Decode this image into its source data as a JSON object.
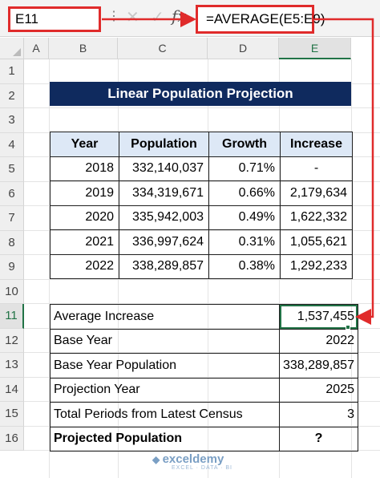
{
  "formula_bar": {
    "name_box": "E11",
    "separator": "⋮",
    "cancel_icon": "✕",
    "enter_icon": "✓",
    "fx_label": "fx",
    "formula": "=AVERAGE(E5:E9)"
  },
  "columns": [
    "A",
    "B",
    "C",
    "D",
    "E"
  ],
  "rows": [
    "1",
    "2",
    "3",
    "4",
    "5",
    "6",
    "7",
    "8",
    "9",
    "10",
    "11",
    "12",
    "13",
    "14",
    "15",
    "16"
  ],
  "title": "Linear Population Projection",
  "table": {
    "headers": [
      "Year",
      "Population",
      "Growth",
      "Increase"
    ],
    "rows": [
      [
        "2018",
        "332,140,037",
        "0.71%",
        "-"
      ],
      [
        "2019",
        "334,319,671",
        "0.66%",
        "2,179,634"
      ],
      [
        "2020",
        "335,942,003",
        "0.49%",
        "1,622,332"
      ],
      [
        "2021",
        "336,997,624",
        "0.31%",
        "1,055,621"
      ],
      [
        "2022",
        "338,289,857",
        "0.38%",
        "1,292,233"
      ]
    ]
  },
  "summary": [
    {
      "label": "Average Increase",
      "value": "1,537,455"
    },
    {
      "label": "Base Year",
      "value": "2022"
    },
    {
      "label": "Base Year Population",
      "value": "338,289,857"
    },
    {
      "label": "Projection Year",
      "value": "2025"
    },
    {
      "label": "Total Periods from Latest Census",
      "value": "3"
    },
    {
      "label": "Projected Population",
      "value": "?"
    }
  ],
  "watermark": {
    "brand": "exceldemy",
    "tagline": "EXCEL · DATA · BI"
  },
  "colors": {
    "accent_red": "#e02b2b",
    "title_bg": "#0f2a5e",
    "header_bg": "#dde8f6",
    "excel_green": "#217346"
  }
}
